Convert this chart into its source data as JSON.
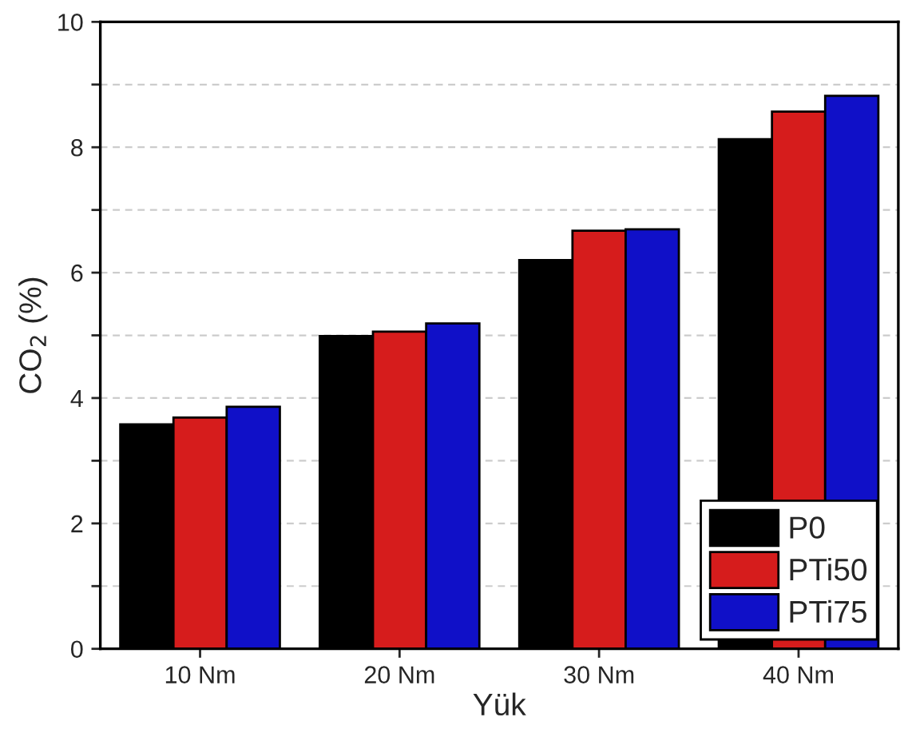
{
  "chart_data": {
    "type": "bar",
    "xlabel": "Yük",
    "ylabel": "CO$_{2}$ (%)",
    "categories": [
      "10 Nm",
      "20 Nm",
      "30 Nm",
      "40 Nm"
    ],
    "series": [
      {
        "name": "P0",
        "color": "#000000",
        "values": [
          3.58,
          4.99,
          6.2,
          8.13
        ]
      },
      {
        "name": "PTi50",
        "color": "#d61c1c",
        "values": [
          3.69,
          5.06,
          6.67,
          8.57
        ]
      },
      {
        "name": "PTi75",
        "color": "#1010c8",
        "values": [
          3.86,
          5.19,
          6.69,
          8.82
        ]
      }
    ],
    "ylim": [
      0,
      10
    ],
    "yticks": [
      0,
      {
        "value": 1,
        "label": null
      },
      2,
      {
        "value": 3,
        "label": null
      },
      4,
      {
        "value": 5,
        "label": null
      },
      6,
      {
        "value": 7,
        "label": null
      },
      8,
      {
        "value": 9,
        "label": null
      },
      10
    ],
    "grid": "y",
    "legend": "bottom right"
  }
}
